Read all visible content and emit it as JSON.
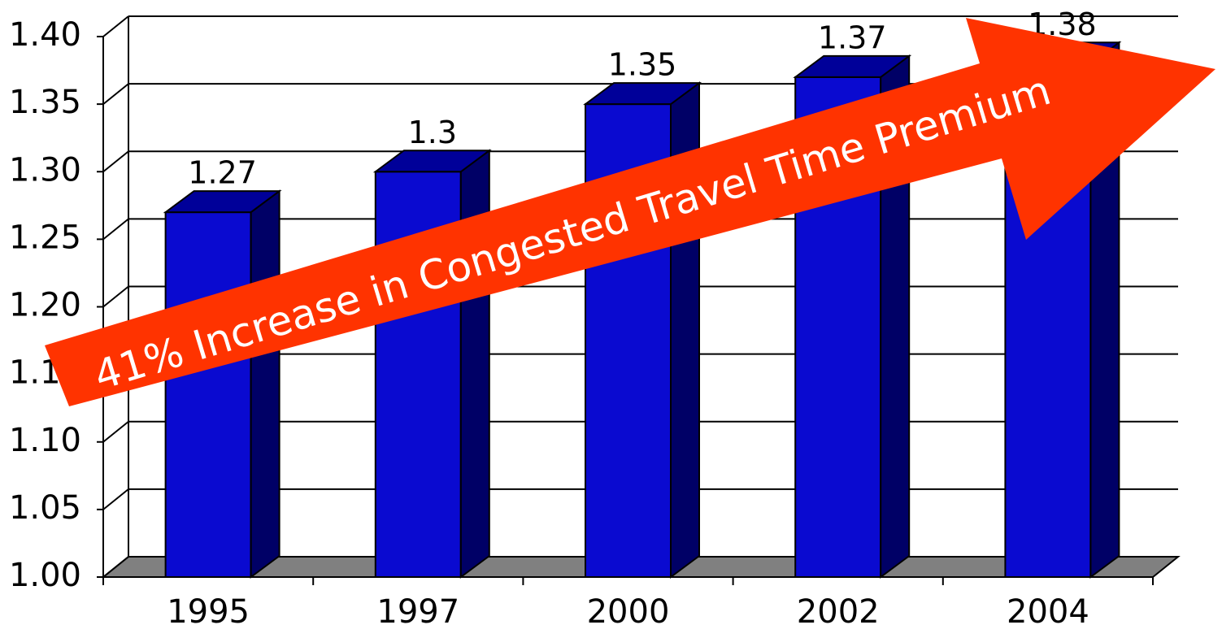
{
  "chart_data": {
    "type": "bar3d",
    "categories": [
      "1995",
      "1997",
      "2000",
      "2002",
      "2004"
    ],
    "values": [
      1.27,
      1.3,
      1.35,
      1.37,
      1.38
    ],
    "color": "#0a0ad0",
    "ylim": [
      1,
      1.4
    ],
    "yticks": [
      {
        "value": 1,
        "label": "1.00"
      },
      1.05,
      {
        "value": 1.1,
        "label": "1.10"
      },
      1.15,
      {
        "value": 1.2,
        "label": "1.20"
      },
      1.25,
      {
        "value": 1.3,
        "label": "1.30"
      },
      1.35,
      {
        "value": 1.4,
        "label": "1.40"
      }
    ],
    "grid": true,
    "annotation": "41% Increase in Congested Travel Time Premium"
  }
}
